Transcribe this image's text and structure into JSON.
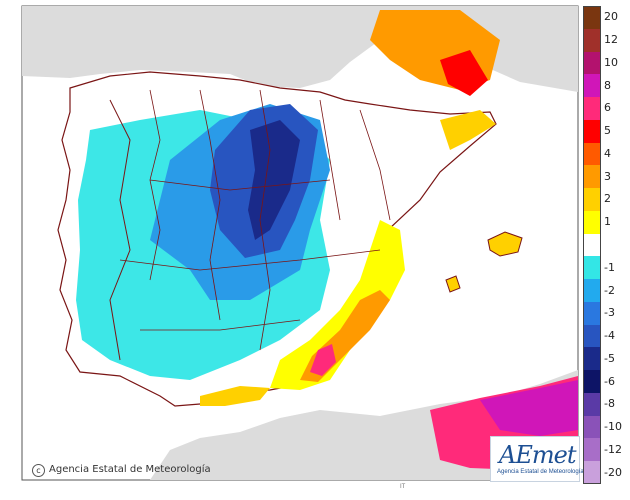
{
  "footer": {
    "copyright": "Agencia Estatal de Meteorología",
    "note": "IT"
  },
  "logo": {
    "word": "AEmet",
    "subtitle": "Agencia Estatal de Meteorología"
  },
  "legend": {
    "classes": [
      {
        "label": "20",
        "color": "#7a3610"
      },
      {
        "label": "12",
        "color": "#a0302a"
      },
      {
        "label": "10",
        "color": "#b3126e"
      },
      {
        "label": "8",
        "color": "#d016b8"
      },
      {
        "label": "6",
        "color": "#ff2a7a"
      },
      {
        "label": "5",
        "color": "#ff0000"
      },
      {
        "label": "4",
        "color": "#ff5a00"
      },
      {
        "label": "3",
        "color": "#ff9a00"
      },
      {
        "label": "2",
        "color": "#ffd000"
      },
      {
        "label": "1",
        "color": "#ffff00"
      },
      {
        "label": "",
        "color": "#ffffff"
      },
      {
        "label": "-1",
        "color": "#33e6e6"
      },
      {
        "label": "-2",
        "color": "#22aaee"
      },
      {
        "label": "-3",
        "color": "#2a78e0"
      },
      {
        "label": "-4",
        "color": "#2855c0"
      },
      {
        "label": "-5",
        "color": "#1a2a8a"
      },
      {
        "label": "-6",
        "color": "#0d1466"
      },
      {
        "label": "-8",
        "color": "#5a3aa6"
      },
      {
        "label": "-10",
        "color": "#8a52b8"
      },
      {
        "label": "-12",
        "color": "#a86ec8"
      },
      {
        "label": "-20",
        "color": "#c9a0dc"
      }
    ]
  },
  "colors": {
    "sea": "#ffffff",
    "foreign_land": "#dcdcdc",
    "border": "#6b0f12"
  }
}
